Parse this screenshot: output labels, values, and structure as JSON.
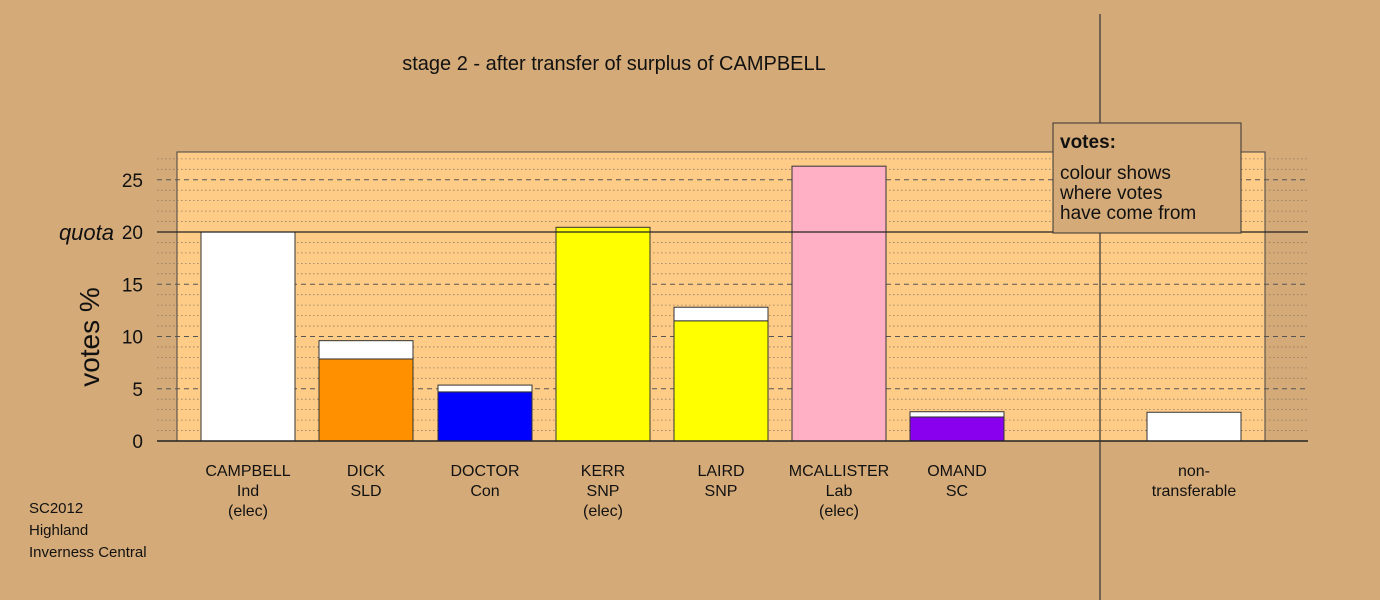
{
  "chart_data": {
    "type": "bar",
    "title": "stage 2 - after transfer of surplus of CAMPBELL",
    "ylabel": "votes %",
    "ylim": [
      0,
      27.7
    ],
    "yticks": [
      0,
      5,
      10,
      15,
      20,
      25
    ],
    "quota": {
      "label": "quota",
      "value": 20
    },
    "candidates": [
      {
        "lines": [
          "CAMPBELL",
          "Ind",
          "(elec)"
        ],
        "segments": [
          {
            "value": 20.0,
            "color": "#ffffff"
          }
        ]
      },
      {
        "lines": [
          "DICK",
          "SLD"
        ],
        "segments": [
          {
            "value": 7.85,
            "color": "#ff9100"
          },
          {
            "value": 1.75,
            "color": "#ffffff"
          }
        ]
      },
      {
        "lines": [
          "DOCTOR",
          "Con"
        ],
        "segments": [
          {
            "value": 4.7,
            "color": "#0000ff"
          },
          {
            "value": 0.65,
            "color": "#ffffff"
          }
        ]
      },
      {
        "lines": [
          "KERR",
          "SNP",
          "(elec)"
        ],
        "segments": [
          {
            "value": 20.45,
            "color": "#ffff00"
          }
        ]
      },
      {
        "lines": [
          "LAIRD",
          "SNP"
        ],
        "segments": [
          {
            "value": 11.5,
            "color": "#ffff00"
          },
          {
            "value": 1.3,
            "color": "#ffffff"
          }
        ]
      },
      {
        "lines": [
          "MCALLISTER",
          "Lab",
          "(elec)"
        ],
        "segments": [
          {
            "value": 26.3,
            "color": "#ffb0c4"
          }
        ]
      },
      {
        "lines": [
          "OMAND",
          "SC"
        ],
        "segments": [
          {
            "value": 2.3,
            "color": "#8800ee"
          },
          {
            "value": 0.5,
            "color": "#ffffff"
          }
        ]
      }
    ],
    "non_transferable": {
      "lines": [
        "non-",
        "transferable"
      ],
      "value": 2.75,
      "color": "#ffffff"
    },
    "legend": {
      "title": "votes:",
      "lines": [
        "colour shows",
        "where votes",
        "have come from"
      ],
      "placement": "top-right"
    }
  },
  "footer": [
    "SC2012",
    "Highland",
    "Inverness Central"
  ],
  "colors": {
    "background": "#d4aa78",
    "plot_area": "#ffcc88"
  }
}
